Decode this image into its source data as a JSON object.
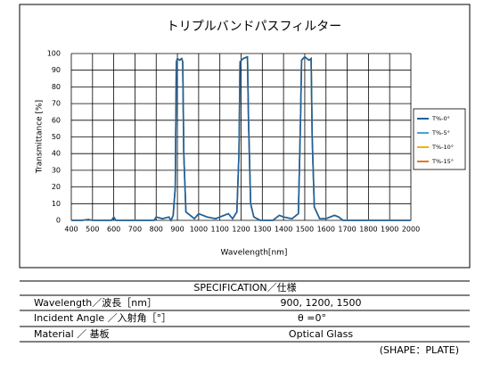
{
  "chart_data": {
    "type": "line",
    "title": "トリプルバンドパスフィルター",
    "xlabel": "Wavelength[nm]",
    "ylabel": "Transmittance [%]",
    "x": [
      400,
      450,
      480,
      500,
      550,
      590,
      600,
      610,
      700,
      790,
      800,
      830,
      860,
      870,
      880,
      890,
      895,
      900,
      910,
      920,
      925,
      930,
      940,
      960,
      980,
      1000,
      1040,
      1080,
      1120,
      1140,
      1160,
      1180,
      1190,
      1195,
      1210,
      1230,
      1235,
      1245,
      1260,
      1290,
      1350,
      1380,
      1400,
      1440,
      1470,
      1480,
      1485,
      1500,
      1520,
      1530,
      1535,
      1545,
      1570,
      1600,
      1640,
      1660,
      1680,
      1750,
      2000
    ],
    "series": [
      {
        "name": "T%-0°",
        "color": "#1f5f9f",
        "values": [
          0,
          0,
          0.5,
          0,
          0,
          0,
          2,
          0,
          0,
          0,
          2,
          1,
          2,
          0,
          3,
          20,
          95,
          97,
          96,
          97,
          95,
          40,
          5,
          3,
          1,
          4,
          2,
          1,
          3,
          4,
          1,
          5,
          40,
          95,
          97,
          98,
          60,
          10,
          2,
          0,
          0,
          3,
          2,
          1,
          4,
          60,
          96,
          98,
          96,
          97,
          50,
          8,
          1,
          1,
          3,
          2,
          0,
          0,
          0
        ]
      },
      {
        "name": "T%-5°",
        "color": "#4aa3d6",
        "values": [
          0,
          0,
          0.5,
          0,
          0,
          0,
          2,
          0,
          0,
          0,
          2,
          1,
          2,
          0,
          3,
          20,
          95,
          97,
          96,
          97,
          95,
          40,
          5,
          3,
          1,
          4,
          2,
          1,
          3,
          4,
          1,
          5,
          40,
          95,
          97,
          98,
          60,
          10,
          2,
          0,
          0,
          3,
          2,
          1,
          4,
          60,
          96,
          98,
          96,
          97,
          50,
          8,
          1,
          1,
          3,
          2,
          0,
          0,
          0
        ]
      },
      {
        "name": "T%-10°",
        "color": "#f0b400",
        "values": [
          0,
          0,
          0.5,
          0,
          0,
          0,
          2,
          0,
          0,
          0,
          2,
          1,
          2,
          0,
          3,
          20,
          95,
          97,
          96,
          97,
          95,
          40,
          5,
          3,
          1,
          4,
          2,
          1,
          3,
          4,
          1,
          5,
          40,
          95,
          97,
          98,
          60,
          10,
          2,
          0,
          0,
          3,
          2,
          1,
          4,
          60,
          96,
          98,
          96,
          97,
          50,
          8,
          1,
          1,
          3,
          2,
          0,
          0,
          0
        ]
      },
      {
        "name": "T%-15°",
        "color": "#e07a20",
        "values": [
          0,
          0,
          0.5,
          0,
          0,
          0,
          2,
          0,
          0,
          0,
          2,
          1,
          2,
          0,
          3,
          20,
          95,
          97,
          96,
          97,
          95,
          40,
          5,
          3,
          1,
          4,
          2,
          1,
          3,
          4,
          1,
          5,
          40,
          95,
          97,
          98,
          60,
          10,
          2,
          0,
          0,
          3,
          2,
          1,
          4,
          60,
          96,
          98,
          96,
          97,
          50,
          8,
          1,
          1,
          3,
          2,
          0,
          0,
          0
        ]
      }
    ],
    "xlim": [
      400,
      2000
    ],
    "xticks": [
      400,
      500,
      600,
      700,
      800,
      900,
      1000,
      1100,
      1200,
      1300,
      1400,
      1500,
      1600,
      1700,
      1800,
      1900,
      2000
    ],
    "ylim": [
      0,
      100
    ],
    "yticks": [
      0,
      10,
      20,
      30,
      40,
      50,
      60,
      70,
      80,
      90,
      100
    ],
    "grid": true,
    "legend": "right"
  },
  "table": {
    "header": "SPECIFICATION／仕様",
    "rows": [
      [
        "Wavelength／波長［nm］",
        "900, 1200, 1500"
      ],
      [
        "Incident Angle ／入射角［°］",
        "θ =0°"
      ],
      [
        "Material ／ 基板",
        "Optical Glass"
      ]
    ],
    "note": "(SHAPE：PLATE)"
  }
}
